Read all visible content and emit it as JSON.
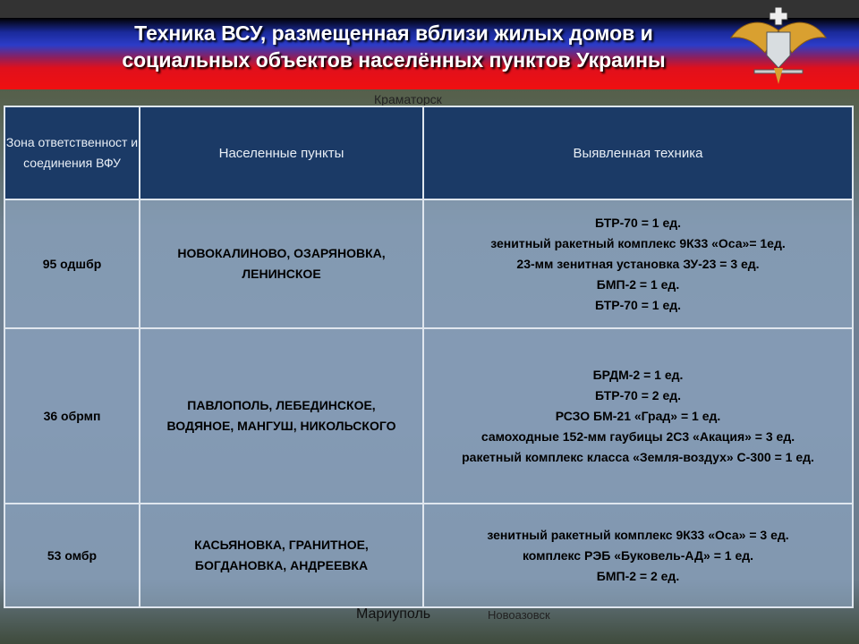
{
  "header": {
    "title_line1": "Техника ВСУ, размещенная вблизи жилых домов и",
    "title_line2": "социальных объектов населённых пунктов Украины",
    "emblem": "eagle-emblem"
  },
  "map_labels": {
    "top": "Краматорск",
    "bottom": "Мариуполь",
    "bottom_right": "Новоазовск"
  },
  "table": {
    "headers": [
      "Зона ответственност и соединения ВФУ",
      "Населенные пункты",
      "Выявленная техника"
    ],
    "rows": [
      {
        "unit": "95 одшбр",
        "places": [
          "НОВОКАЛИНОВО, ОЗАРЯНОВКА,",
          "ЛЕНИНСКОЕ"
        ],
        "equipment": [
          "БТР-70 = 1 ед.",
          "зенитный ракетный комплекс 9К33 «Оса»= 1ед.",
          "23-мм зенитная установка ЗУ-23 = 3 ед.",
          "БМП-2 = 1 ед.",
          "БТР-70 = 1 ед."
        ]
      },
      {
        "unit": "36 обрмп",
        "places": [
          "ПАВЛОПОЛЬ, ЛЕБЕДИНСКОЕ,",
          "ВОДЯНОЕ, МАНГУШ, НИКОЛЬСКОГО"
        ],
        "equipment": [
          "БРДМ-2 = 1 ед.",
          "БТР-70 = 2 ед.",
          "РСЗО БМ-21 «Град» = 1 ед.",
          "самоходные 152-мм гаубицы 2С3 «Акация»  = 3 ед.",
          "ракетный комплекс класса «Земля-воздух» С-300  = 1 ед."
        ]
      },
      {
        "unit": "53 омбр",
        "places": [
          "КАСЬЯНОВКА, ГРАНИТНОЕ,",
          "БОГДАНОВКА, АНДРЕЕВКА"
        ],
        "equipment": [
          "зенитный ракетный комплекс 9К33 «Оса» = 3 ед.",
          "комплекс РЭБ «Буковель-АД» = 1 ед.",
          "БМП-2 = 2 ед."
        ]
      }
    ]
  }
}
